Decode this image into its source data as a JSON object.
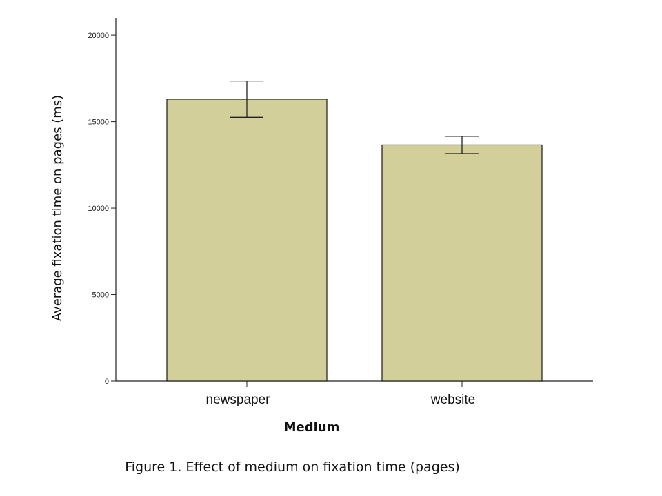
{
  "chart_data": {
    "type": "bar",
    "categories": [
      "newspaper",
      "website"
    ],
    "values": [
      16300,
      13650
    ],
    "error_bars": [
      {
        "low": 15250,
        "high": 17350
      },
      {
        "low": 13150,
        "high": 14150
      }
    ],
    "xlabel": "Medium",
    "ylabel": "Average fixation time on pages (ms)",
    "ylim": [
      0,
      21000
    ],
    "yticks": [
      0,
      5000,
      10000,
      15000,
      20000
    ],
    "bar_color": "#d3cf9b",
    "grid": false,
    "legend": "none"
  },
  "caption": "Figure 1. Effect of medium on fixation time (pages)"
}
